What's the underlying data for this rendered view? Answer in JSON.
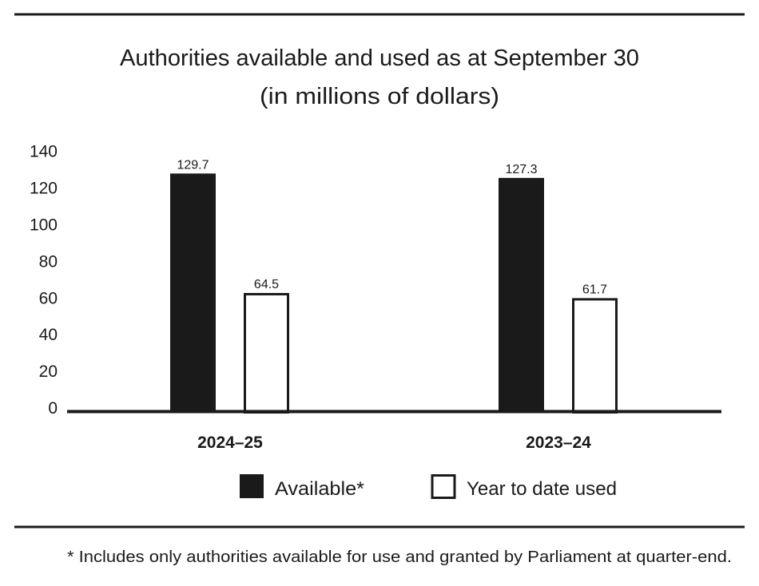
{
  "chart_data": {
    "type": "bar",
    "title": "Authorities available and used as at September 30",
    "subtitle": "(in millions of dollars)",
    "categories": [
      "2024–25",
      "2023–24"
    ],
    "series": [
      {
        "name": "Available*",
        "values": [
          129.7,
          127.3
        ],
        "color": "#1a1a1a",
        "fill": "solid"
      },
      {
        "name": "Year to date used",
        "values": [
          64.5,
          61.7
        ],
        "color": "#ffffff",
        "fill": "outline"
      }
    ],
    "data_labels": [
      [
        "129.7",
        "127.3"
      ],
      [
        "64.5",
        "61.7"
      ]
    ],
    "xlabel": "",
    "ylabel": "",
    "ylim": [
      0,
      140
    ],
    "yticks": [
      "0",
      "20",
      "40",
      "60",
      "80",
      "100",
      "120",
      "140"
    ],
    "grid": false,
    "legend_placement": "bottom",
    "footnote": "* Includes only authorities available for use and granted by Parliament at quarter-end."
  }
}
